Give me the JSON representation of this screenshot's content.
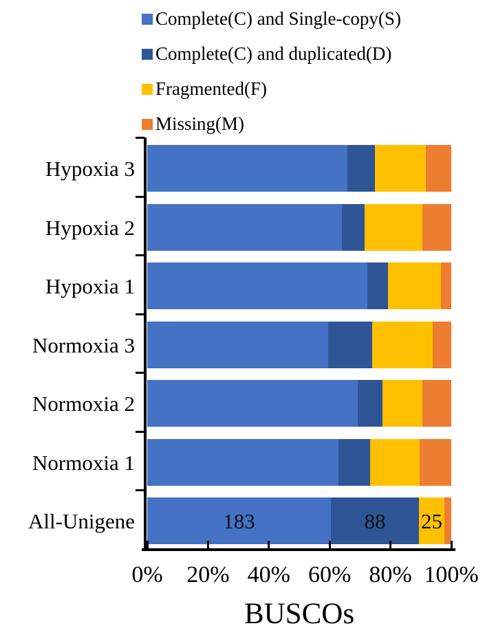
{
  "colors": {
    "single_copy": "#4472C4",
    "duplicated": "#2F5597",
    "fragmented": "#FFC000",
    "missing": "#ED7D31",
    "axis": "#000000"
  },
  "legend": {
    "position": "top",
    "items": [
      "Complete(C) and Single-copy(S)",
      "Complete(C) and duplicated(D)",
      "Fragmented(F)",
      "Missing(M)"
    ]
  },
  "chart_data": {
    "type": "bar",
    "orientation": "horizontal",
    "stacked": true,
    "stack_total": "100%",
    "xlabel": "BUSCOs",
    "ylabel": "",
    "xlim": [
      0,
      100
    ],
    "grid": false,
    "x_axis_ticks": [
      "0%",
      "20%",
      "40%",
      "60%",
      "80%",
      "100%"
    ],
    "categories": [
      "Hypoxia 3",
      "Hypoxia 2",
      "Hypoxia 1",
      "Normoxia 3",
      "Normoxia 2",
      "Normoxia 1",
      "All-Unigene"
    ],
    "series": [
      {
        "name": "Complete(C) and Single-copy(S)",
        "color": "#4472C4",
        "values_pct": [
          65.9,
          64.0,
          72.3,
          59.5,
          69.3,
          63.0,
          60.4
        ],
        "labels": [
          "",
          "",
          "",
          "",
          "",
          "",
          "183"
        ]
      },
      {
        "name": "Complete(C) and duplicated(D)",
        "color": "#2F5597",
        "values_pct": [
          9.1,
          7.6,
          6.9,
          14.4,
          8.0,
          10.4,
          29.0
        ],
        "labels": [
          "",
          "",
          "",
          "",
          "",
          "",
          "88"
        ]
      },
      {
        "name": "Fragmented(F)",
        "color": "#FFC000",
        "values_pct": [
          16.6,
          18.9,
          17.4,
          20.0,
          13.2,
          16.1,
          8.3
        ],
        "labels": [
          "",
          "",
          "",
          "",
          "",
          "",
          "25"
        ]
      },
      {
        "name": "Missing(M)",
        "color": "#ED7D31",
        "values_pct": [
          8.4,
          9.5,
          3.4,
          6.1,
          9.5,
          10.5,
          2.3
        ],
        "labels": [
          "",
          "",
          "",
          "",
          "",
          "",
          ""
        ]
      }
    ],
    "visible_value_labels": {
      "All-Unigene": {
        "Complete(C) and Single-copy(S)": 183,
        "Complete(C) and duplicated(D)": 88,
        "Fragmented(F)": 25
      }
    }
  }
}
